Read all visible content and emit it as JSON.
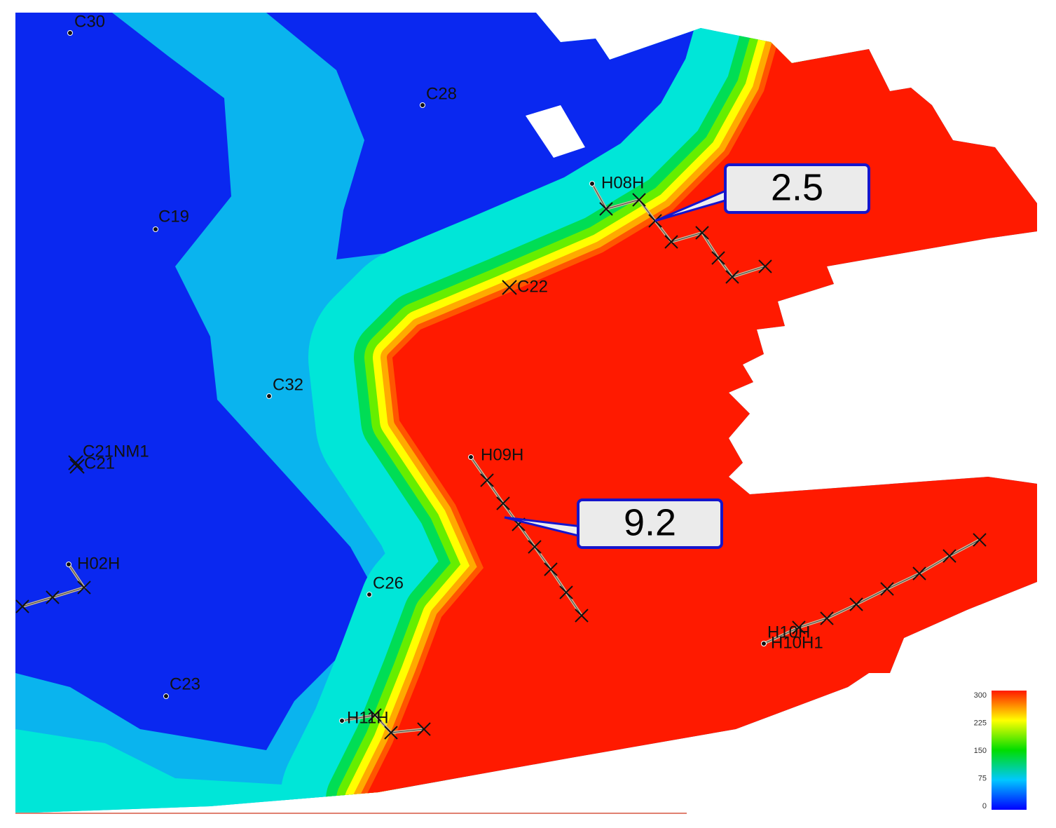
{
  "wells": [
    {
      "label": "C30"
    },
    {
      "label": "C28"
    },
    {
      "label": "C19"
    },
    {
      "label": "H08H"
    },
    {
      "label": "C22"
    },
    {
      "label": "C32"
    },
    {
      "label": "C21NM1"
    },
    {
      "label": "C21"
    },
    {
      "label": "H02H"
    },
    {
      "label": "C26"
    },
    {
      "label": "C23"
    },
    {
      "label": "H09H"
    },
    {
      "label": "H10H"
    },
    {
      "label": "H10H1"
    },
    {
      "label": "H11H"
    }
  ],
  "callouts": [
    {
      "label": "2.5"
    },
    {
      "label": "9.2"
    }
  ],
  "colorbar": {
    "ticks": [
      0,
      75,
      150,
      225,
      300
    ]
  }
}
